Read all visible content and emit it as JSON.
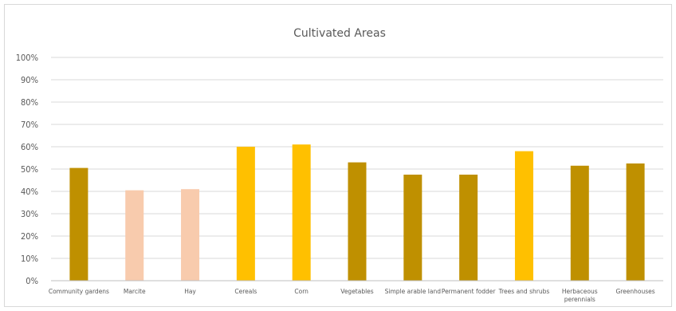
{
  "chart_data": {
    "type": "bar",
    "title": "Cultivated Areas",
    "xlabel": "",
    "ylabel": "",
    "ylim": [
      0,
      100
    ],
    "yticks": [
      "0%",
      "10%",
      "20%",
      "30%",
      "40%",
      "50%",
      "60%",
      "70%",
      "80%",
      "90%",
      "100%"
    ],
    "grid": true,
    "legend": "none",
    "categories": [
      "Community gardens",
      "Marcite",
      "Hay",
      "Cereals",
      "Corn",
      "Vegetables",
      "Simple arable land",
      "Permanent fodder",
      "Trees and shrubs",
      "Herbaceous perennials",
      "Greenhouses"
    ],
    "values": [
      50.5,
      40.5,
      41,
      60,
      61,
      53,
      47.5,
      47.5,
      58,
      51.5,
      52.5
    ],
    "bar_colors": [
      "#bf9000",
      "#f8cbad",
      "#f8cbad",
      "#ffc000",
      "#ffc000",
      "#bf9000",
      "#bf9000",
      "#bf9000",
      "#ffc000",
      "#bf9000",
      "#bf9000"
    ]
  }
}
